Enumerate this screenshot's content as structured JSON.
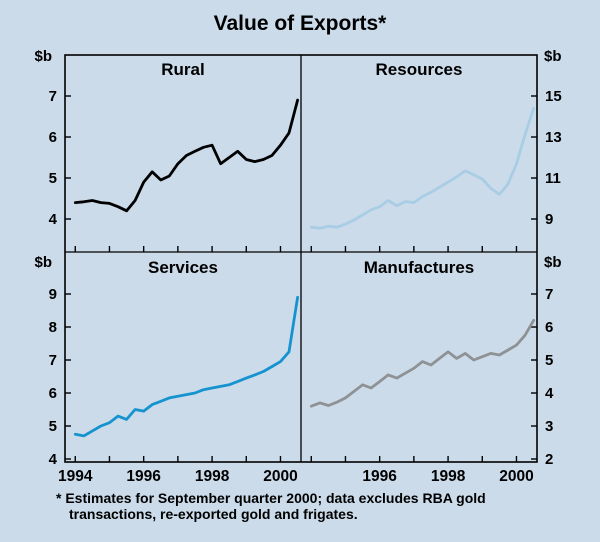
{
  "chart_data": {
    "type": "line",
    "title": "Value of Exports*",
    "unit_label": "$b",
    "x_interval": "quarterly",
    "x_start": "1994 Q1",
    "x_end": "2000 Q3 (September quarter 2000, estimate)",
    "x_domain": [
      1993.7,
      2000.6
    ],
    "grid": false,
    "legend": "none",
    "panels": [
      {
        "name": "Rural",
        "position": "top-left",
        "axis_side": "left",
        "color": "#000000",
        "yticks": [
          4,
          5,
          6,
          7
        ],
        "ylim": [
          3.2,
          8.0
        ],
        "xticks": [
          1994,
          1996,
          1998,
          2000
        ],
        "values": [
          4.4,
          4.42,
          4.45,
          4.4,
          4.38,
          4.3,
          4.2,
          4.45,
          4.9,
          5.15,
          4.95,
          5.05,
          5.35,
          5.55,
          5.65,
          5.75,
          5.8,
          5.35,
          5.5,
          5.65,
          5.45,
          5.4,
          5.45,
          5.55,
          5.8,
          6.1,
          6.9
        ]
      },
      {
        "name": "Resources",
        "position": "top-right",
        "axis_side": "right",
        "color": "#a9cde5",
        "yticks": [
          9,
          11,
          13,
          15
        ],
        "ylim": [
          7.4,
          17.0
        ],
        "xticks": [
          1996,
          1998,
          2000
        ],
        "values": [
          8.6,
          8.55,
          8.65,
          8.6,
          8.75,
          8.95,
          9.2,
          9.45,
          9.6,
          9.9,
          9.65,
          9.85,
          9.8,
          10.1,
          10.3,
          10.55,
          10.8,
          11.05,
          11.35,
          11.15,
          10.95,
          10.5,
          10.2,
          10.7,
          11.7,
          13.1,
          14.4
        ]
      },
      {
        "name": "Services",
        "position": "bottom-left",
        "axis_side": "left",
        "color": "#1593cf",
        "yticks": [
          4,
          5,
          6,
          7,
          8,
          9
        ],
        "ylim": [
          3.9,
          10.3
        ],
        "xticks": [
          1994,
          1996,
          1998,
          2000
        ],
        "values": [
          4.75,
          4.7,
          4.85,
          5.0,
          5.1,
          5.3,
          5.2,
          5.5,
          5.45,
          5.65,
          5.75,
          5.85,
          5.9,
          5.95,
          6.0,
          6.1,
          6.15,
          6.2,
          6.25,
          6.35,
          6.45,
          6.55,
          6.65,
          6.8,
          6.95,
          7.25,
          8.9
        ]
      },
      {
        "name": "Manufactures",
        "position": "bottom-right",
        "axis_side": "right",
        "color": "#8f9294",
        "yticks": [
          2,
          3,
          4,
          5,
          6,
          7
        ],
        "ylim": [
          1.9,
          8.3
        ],
        "xticks": [
          1996,
          1998,
          2000
        ],
        "values": [
          3.6,
          3.7,
          3.62,
          3.72,
          3.85,
          4.05,
          4.25,
          4.15,
          4.35,
          4.55,
          4.45,
          4.6,
          4.75,
          4.95,
          4.85,
          5.05,
          5.25,
          5.05,
          5.2,
          5.0,
          5.1,
          5.2,
          5.15,
          5.3,
          5.45,
          5.75,
          6.2
        ]
      }
    ],
    "footnote": [
      "* Estimates for September quarter 2000; data excludes RBA gold",
      "transactions, re-exported gold and frigates."
    ]
  }
}
